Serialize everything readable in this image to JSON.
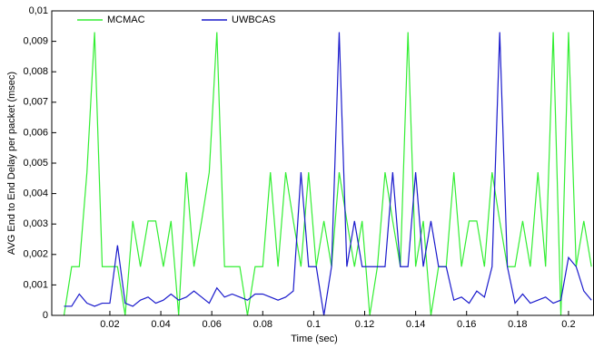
{
  "chart_data": {
    "type": "line",
    "x_label": "Time (sec)",
    "y_label": "AVG End to End Delay per packet (msec)",
    "x": [
      0.002,
      0.005,
      0.008,
      0.011,
      0.014,
      0.017,
      0.02,
      0.023,
      0.026,
      0.029,
      0.032,
      0.035,
      0.038,
      0.041,
      0.044,
      0.047,
      0.05,
      0.053,
      0.056,
      0.059,
      0.062,
      0.065,
      0.068,
      0.071,
      0.074,
      0.077,
      0.08,
      0.083,
      0.086,
      0.089,
      0.092,
      0.095,
      0.098,
      0.101,
      0.104,
      0.107,
      0.11,
      0.113,
      0.116,
      0.119,
      0.122,
      0.125,
      0.128,
      0.131,
      0.134,
      0.137,
      0.14,
      0.143,
      0.146,
      0.149,
      0.152,
      0.155,
      0.158,
      0.161,
      0.164,
      0.167,
      0.17,
      0.173,
      0.176,
      0.179,
      0.182,
      0.185,
      0.188,
      0.191,
      0.194,
      0.197,
      0.2,
      0.203,
      0.206,
      0.209
    ],
    "series": [
      {
        "name": "MCMAC",
        "color": "#33ee33",
        "values": [
          0,
          0.0016,
          0.0016,
          0.0047,
          0.0093,
          0.0016,
          0.0016,
          0.0016,
          0,
          0.0031,
          0.0016,
          0.0031,
          0.0031,
          0.0016,
          0.0031,
          0,
          0.0047,
          0.0016,
          0.0031,
          0.0047,
          0.0093,
          0.0016,
          0.0016,
          0.0016,
          0,
          0.0016,
          0.0016,
          0.0047,
          0.0016,
          0.0047,
          0.0031,
          0.0016,
          0.0047,
          0.0016,
          0.0031,
          0.0016,
          0.0047,
          0.0031,
          0.0016,
          0.0031,
          0,
          0.0016,
          0.0047,
          0.0031,
          0.0016,
          0.0093,
          0.0016,
          0.0031,
          0,
          0.0016,
          0.0016,
          0.0047,
          0.0016,
          0.0031,
          0.0031,
          0.0016,
          0.0047,
          0.0031,
          0.0016,
          0.0016,
          0.0031,
          0.0016,
          0.0047,
          0.0016,
          0.0093,
          0,
          0.0093,
          0.0016,
          0.0031,
          0.0016
        ]
      },
      {
        "name": "UWBCAS",
        "color": "#1a1acc",
        "values": [
          0.0003,
          0.0003,
          0.0007,
          0.0004,
          0.0003,
          0.0004,
          0.0004,
          0.0023,
          0.0004,
          0.0003,
          0.0005,
          0.0006,
          0.0004,
          0.0005,
          0.0007,
          0.0005,
          0.0006,
          0.0008,
          0.0006,
          0.0004,
          0.0009,
          0.0006,
          0.0007,
          0.0006,
          0.0005,
          0.0007,
          0.0007,
          0.0006,
          0.0005,
          0.0006,
          0.0008,
          0.0047,
          0.0016,
          0.0016,
          0,
          0.0016,
          0.0093,
          0.0016,
          0.0031,
          0.0016,
          0.0016,
          0.0016,
          0.0016,
          0.0047,
          0.0016,
          0.0016,
          0.0047,
          0.0016,
          0.0031,
          0.0016,
          0.0016,
          0.0005,
          0.0006,
          0.0004,
          0.0008,
          0.0006,
          0.0016,
          0.0093,
          0.0016,
          0.0004,
          0.0007,
          0.0004,
          0.0005,
          0.0006,
          0.0004,
          0.0005,
          0.0019,
          0.0016,
          0.0008,
          0.0005
        ]
      }
    ],
    "xlim": [
      -0.0028,
      0.21
    ],
    "xticks": [
      0.02,
      0.04,
      0.06,
      0.08,
      0.1,
      0.12,
      0.14,
      0.16,
      0.18,
      0.2
    ],
    "ylim": [
      0,
      0.01
    ],
    "yticks": [
      0,
      {
        "value": 0.001,
        "label": "0,001"
      },
      {
        "value": 0.002,
        "label": "0,002"
      },
      {
        "value": 0.003,
        "label": "0,003"
      },
      {
        "value": 0.004,
        "label": "0,004"
      },
      {
        "value": 0.005,
        "label": "0,005"
      },
      {
        "value": 0.006,
        "label": "0,006"
      },
      {
        "value": 0.007,
        "label": "0,007"
      },
      {
        "value": 0.008,
        "label": "0,008"
      },
      {
        "value": 0.009,
        "label": "0,009"
      },
      {
        "value": 0.01,
        "label": "0,01"
      }
    ],
    "legend": "upper-left"
  }
}
